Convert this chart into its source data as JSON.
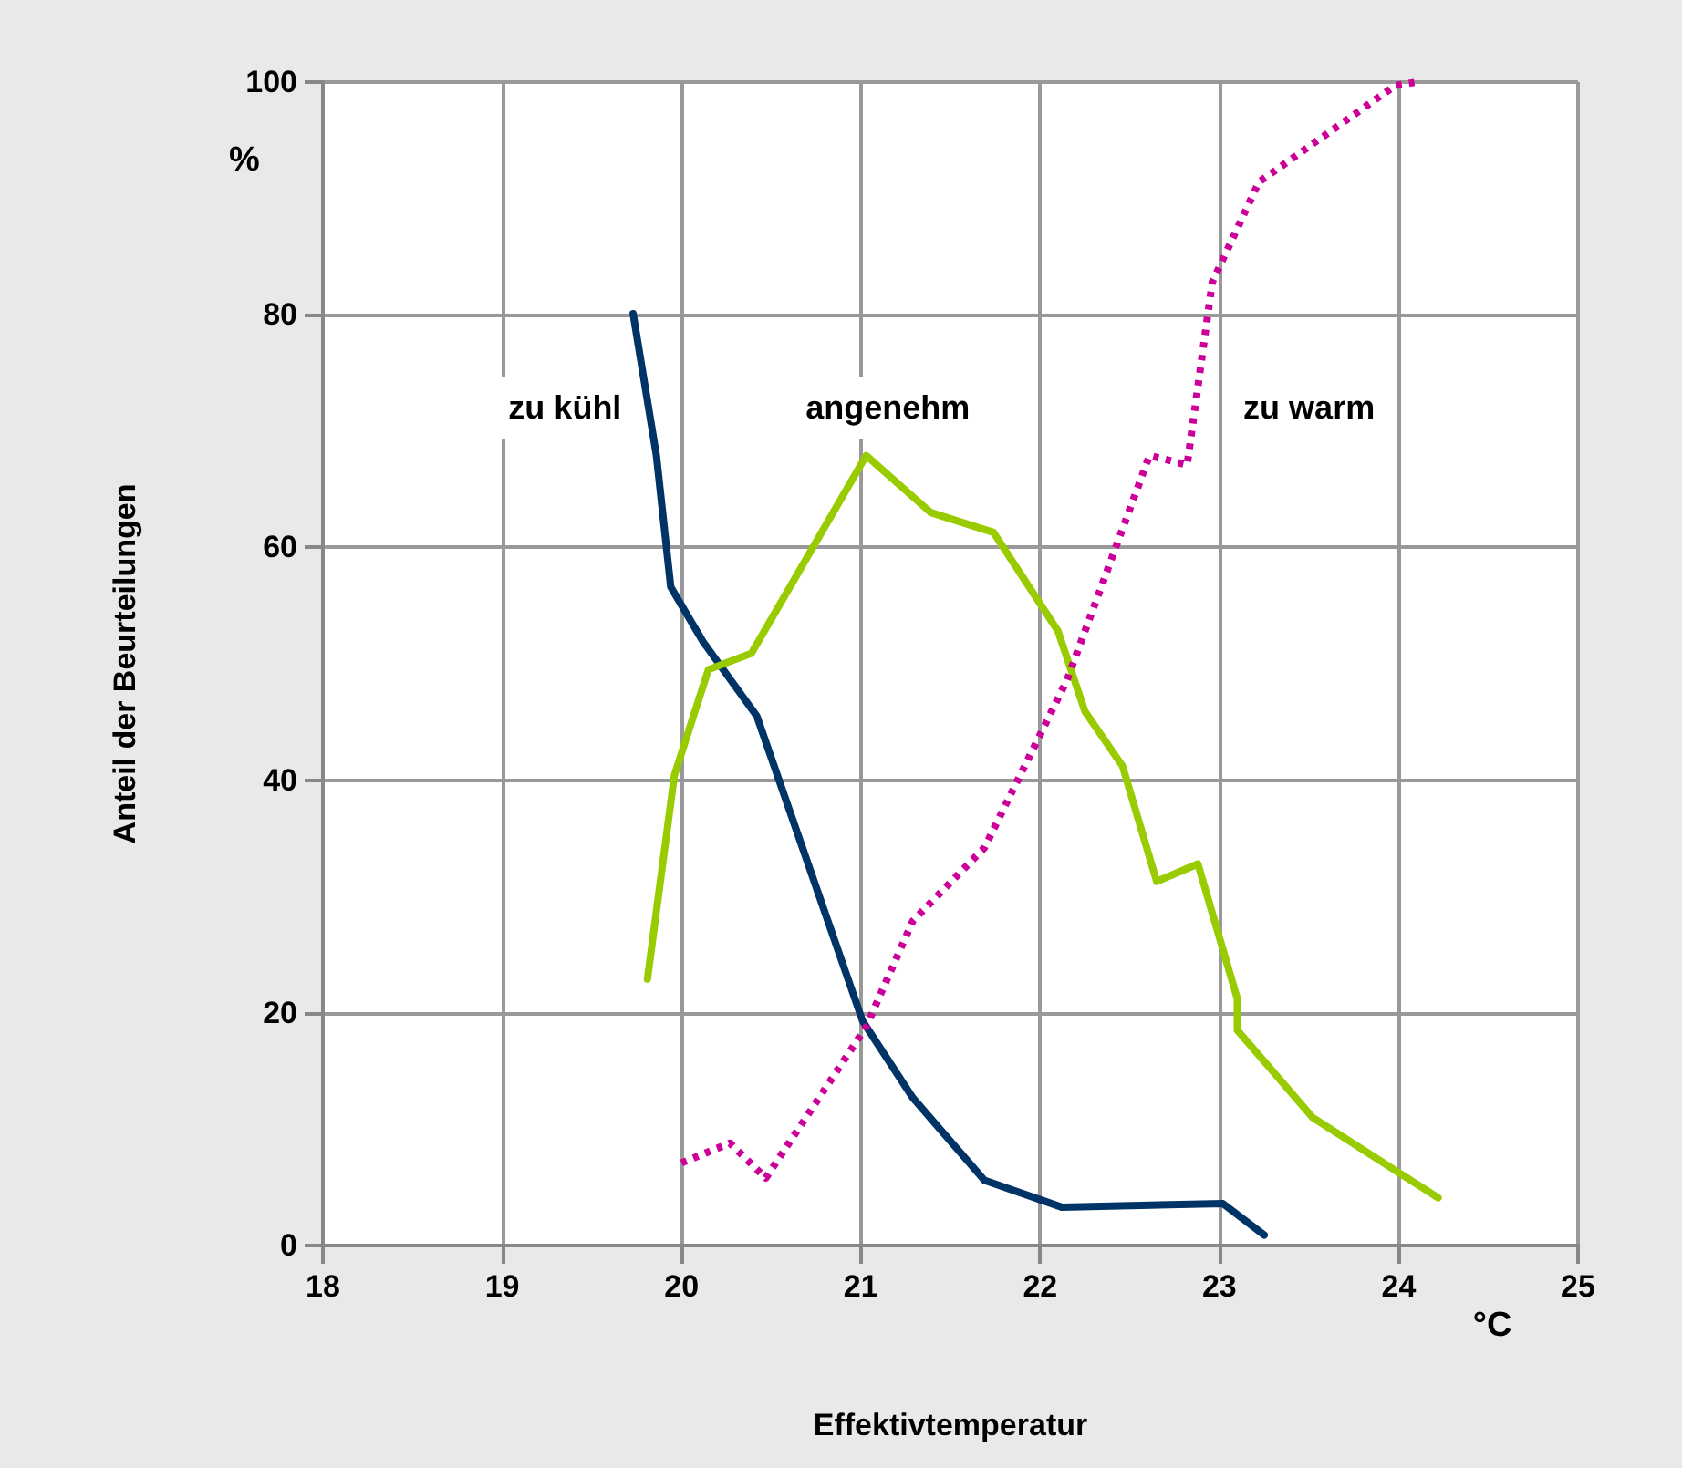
{
  "chart_data": {
    "type": "line",
    "xlabel": "Effektivtemperatur",
    "ylabel": "Anteil der Beurteilungen",
    "annotations": [
      "%",
      "°C"
    ],
    "xlim": [
      18,
      25
    ],
    "xticks": [
      18,
      19,
      20,
      21,
      22,
      23,
      24,
      25
    ],
    "ylim": [
      0,
      100
    ],
    "yticks": [
      0,
      20,
      40,
      60,
      80,
      100
    ],
    "grid": true,
    "legend": false,
    "marker": "none",
    "series": [
      {
        "name": "zu kühl",
        "color": "#003366",
        "line_style": "solid",
        "x": [
          19.73,
          19.86,
          19.94,
          20.12,
          20.42,
          21.01,
          21.29,
          21.69,
          22.12,
          23.02,
          23.25
        ],
        "values": [
          80.1,
          67.9,
          56.6,
          51.9,
          45.5,
          19.3,
          12.7,
          5.6,
          3.3,
          3.6,
          0.9
        ]
      },
      {
        "name": "angenehm",
        "color": "#99cc00",
        "line_style": "solid",
        "x": [
          19.81,
          19.96,
          20.15,
          20.39,
          21.03,
          21.39,
          21.74,
          22.1,
          22.25,
          22.46,
          22.65,
          22.88,
          23.1,
          23.1,
          23.52,
          24.22
        ],
        "values": [
          22.9,
          40.4,
          49.5,
          50.9,
          67.9,
          63,
          61.3,
          52.8,
          45.9,
          41.2,
          31.3,
          32.8,
          21.2,
          18.5,
          11,
          4.1
        ]
      },
      {
        "name": "zu warm",
        "color": "#cc0099",
        "line_style": "dotted",
        "x": [
          20,
          20.27,
          20.47,
          21.03,
          21.29,
          21.69,
          22.15,
          22.61,
          22.82,
          22.96,
          23.22,
          23.98,
          24.1
        ],
        "values": [
          7.1,
          8.8,
          5.8,
          18.8,
          27.9,
          34.2,
          48.6,
          67.9,
          67.1,
          82.8,
          91.4,
          99.7,
          100
        ]
      }
    ]
  }
}
